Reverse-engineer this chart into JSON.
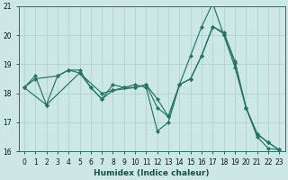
{
  "xlabel": "Humidex (Indice chaleur)",
  "xlim_min": -0.5,
  "xlim_max": 23.5,
  "ylim_min": 16,
  "ylim_max": 21,
  "yticks": [
    16,
    17,
    18,
    19,
    20,
    21
  ],
  "xticks": [
    0,
    1,
    2,
    3,
    4,
    5,
    6,
    7,
    8,
    9,
    10,
    11,
    12,
    13,
    14,
    15,
    16,
    17,
    18,
    19,
    20,
    21,
    22,
    23
  ],
  "bg_color": "#cce8e5",
  "line_color": "#267365",
  "grid_color": "#aacfcc",
  "figsize": [
    3.2,
    2.0
  ],
  "dpi": 100,
  "lines": [
    {
      "x": [
        0,
        1,
        2,
        3,
        4,
        5,
        6,
        7,
        8,
        9,
        10,
        11,
        12,
        13,
        14,
        15,
        16,
        17,
        18,
        19,
        20,
        21,
        22,
        23
      ],
      "y": [
        18.2,
        18.6,
        17.6,
        18.6,
        18.8,
        18.8,
        18.2,
        17.8,
        18.3,
        18.2,
        18.3,
        18.2,
        16.7,
        17.0,
        18.3,
        19.3,
        20.3,
        21.1,
        20.0,
        18.9,
        17.5,
        16.5,
        16.1,
        16.05
      ]
    },
    {
      "x": [
        0,
        2,
        5,
        7,
        8,
        10,
        11,
        12,
        13,
        14,
        15,
        16,
        17,
        18,
        19,
        20,
        21,
        22,
        23
      ],
      "y": [
        18.2,
        17.6,
        18.7,
        18.0,
        18.1,
        18.2,
        18.3,
        17.5,
        17.2,
        18.3,
        18.5,
        19.3,
        20.3,
        20.05,
        19.05,
        17.5,
        16.6,
        16.3,
        16.05
      ]
    },
    {
      "x": [
        0,
        1,
        3,
        4,
        5,
        6,
        7,
        8,
        9,
        10,
        11,
        12,
        13,
        14,
        15,
        16,
        17,
        18,
        19,
        20,
        21,
        22,
        23
      ],
      "y": [
        18.2,
        18.5,
        18.6,
        18.8,
        18.7,
        18.2,
        17.8,
        18.1,
        18.2,
        18.2,
        18.3,
        17.8,
        17.2,
        18.3,
        18.5,
        19.3,
        20.3,
        20.1,
        19.1,
        17.5,
        16.6,
        16.3,
        16.05
      ]
    }
  ]
}
